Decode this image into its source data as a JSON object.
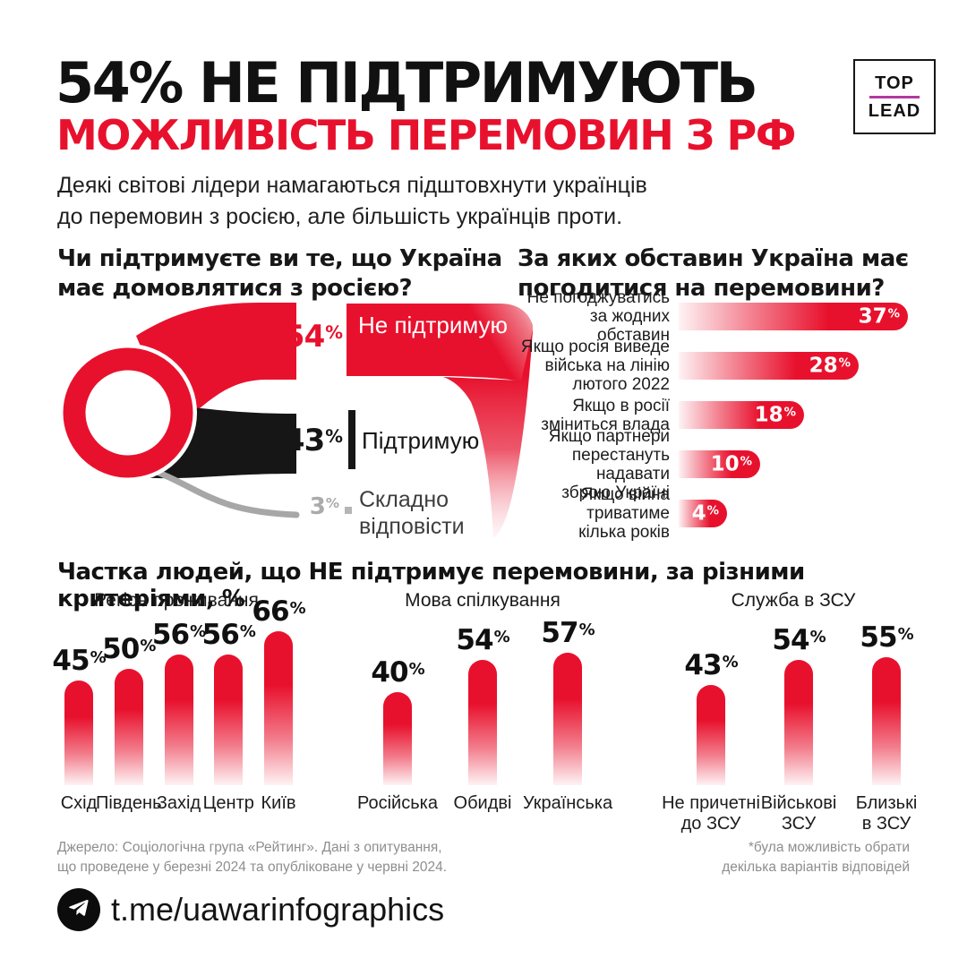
{
  "colors": {
    "red": "#e8112d",
    "black": "#161616",
    "gray": "#a7a7a7",
    "light_red_fade": "#f9ced4",
    "logo_accent": "#b13a9e"
  },
  "header": {
    "title_black": "54% НЕ ПІДТРИМУЮТЬ",
    "title_red": "МОЖЛИВІСТЬ ПЕРЕМОВИН З РФ",
    "logo_top": "TOP",
    "logo_bottom": "LEAD",
    "subtitle_line1": "Деякі світові лідери намагаються підштовхнути українців",
    "subtitle_line2": "до перемовин з росією, але більшість українців проти."
  },
  "support_chart": {
    "title_line1": "Чи підтримуєте ви те, що Україна",
    "title_line2": "має домовлятися з росією?"
  },
  "conditions_chart": {
    "title_line1": "За яких обставин Україна має",
    "title_line2": "погодитися на перемовини?"
  },
  "breakdown": {
    "title": "Частка людей, що НЕ підтримує перемовини, за різними критеріями, %"
  },
  "footer": {
    "source_line1": "Джерело: Соціологічна група «Рейтинг». Дані з опитування,",
    "source_line2": "що проведене у березні 2024 та опубліковане у червні 2024.",
    "note_line1": "*була можливість обрати",
    "note_line2": "декілька варіантів відповідей",
    "telegram": "t.me/uawarinfographics"
  },
  "chart_data": [
    {
      "type": "sankey",
      "question": "Чи підтримуєте ви те, що Україна має домовлятися з росією?",
      "categories": [
        "Не підтримую",
        "Підтримую",
        "Складно відповісти"
      ],
      "values": [
        54,
        43,
        3
      ],
      "unit": "%",
      "colors": [
        "#e8112d",
        "#161616",
        "#a7a7a7"
      ]
    },
    {
      "type": "bar",
      "orientation": "horizontal",
      "question": "За яких обставин Україна має погодитися на перемовини?",
      "unit": "%",
      "xlim": [
        0,
        40
      ],
      "categories": [
        "Не погоджуватись за жодних обставин",
        "Якщо росія виведе війська на лінію лютого 2022",
        "Якщо в росії зміниться влада",
        "Якщо партнери перестануть надавати зброю Україні",
        "Якщо війна триватиме кілька років"
      ],
      "label_lines": [
        [
          "Не погоджуватись",
          "за жодних обставин"
        ],
        [
          "Якщо росія виведе",
          "війська на лінію",
          "лютого 2022"
        ],
        [
          "Якщо в росії",
          "зміниться влада"
        ],
        [
          "Якщо партнери",
          "перестануть надавати",
          "зброю Україні"
        ],
        [
          "Якщо війна триватиме",
          "кілька років"
        ]
      ],
      "values": [
        37,
        28,
        18,
        10,
        4
      ]
    },
    {
      "type": "bar",
      "orientation": "vertical",
      "title": "Частка людей, що НЕ підтримує перемовини, за різними критеріями, %",
      "unit": "%",
      "ylim": [
        0,
        70
      ],
      "groups": [
        {
          "name": "Регіон проживання",
          "categories": [
            "Схід",
            "Південь",
            "Захід",
            "Центр",
            "Київ"
          ],
          "label_lines": [
            [
              "Схід"
            ],
            [
              "Південь"
            ],
            [
              "Захід"
            ],
            [
              "Центр"
            ],
            [
              "Київ"
            ]
          ],
          "values": [
            45,
            50,
            56,
            56,
            66
          ]
        },
        {
          "name": "Мова спілкування",
          "categories": [
            "Російська",
            "Обидві",
            "Українська"
          ],
          "label_lines": [
            [
              "Російська"
            ],
            [
              "Обидві"
            ],
            [
              "Українська"
            ]
          ],
          "values": [
            40,
            54,
            57
          ]
        },
        {
          "name": "Служба в ЗСУ",
          "categories": [
            "Не причетні до ЗСУ",
            "Військові ЗСУ",
            "Близькі в ЗСУ"
          ],
          "label_lines": [
            [
              "Не причетні",
              "до ЗСУ"
            ],
            [
              "Військові",
              "ЗСУ"
            ],
            [
              "Близькі",
              "в ЗСУ"
            ]
          ],
          "values": [
            43,
            54,
            55
          ]
        }
      ]
    }
  ]
}
